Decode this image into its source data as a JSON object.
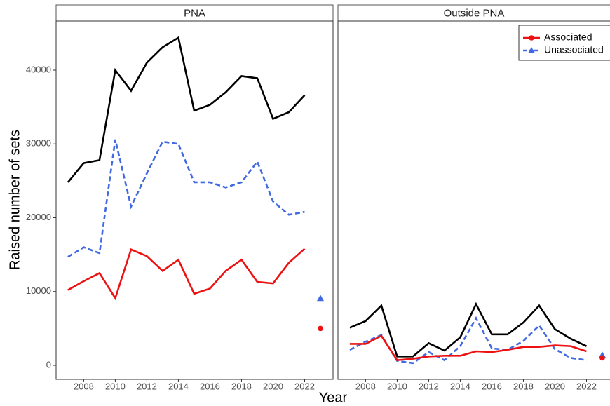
{
  "chart_data": [
    {
      "type": "line",
      "strip": "PNA",
      "xlabel": "Year",
      "ylabel": "Raised number of sets",
      "x": [
        2007,
        2008,
        2009,
        2010,
        2011,
        2012,
        2013,
        2014,
        2015,
        2016,
        2017,
        2018,
        2019,
        2020,
        2021,
        2022
      ],
      "xlim": [
        2006.25,
        2023.8
      ],
      "xticks": [
        2008,
        2010,
        2012,
        2014,
        2016,
        2018,
        2020,
        2022
      ],
      "ylim": [
        -1900,
        46650
      ],
      "yticks": [
        0,
        10000,
        20000,
        30000,
        40000
      ],
      "series": [
        {
          "color": "#000000",
          "dash": "solid",
          "values": [
            24800,
            27400,
            27800,
            40000,
            37200,
            41000,
            43100,
            44400,
            34500,
            35300,
            37000,
            39200,
            38900,
            33400,
            34300,
            36600
          ]
        },
        {
          "name": "Unassociated",
          "color": "#4169e1",
          "dash": "dashed",
          "values": [
            14700,
            16000,
            15200,
            30600,
            21500,
            26000,
            30300,
            30000,
            24800,
            24800,
            24100,
            24800,
            27600,
            22200,
            20400,
            20800
          ]
        },
        {
          "name": "Associated",
          "color": "#ee1111",
          "dash": "solid",
          "values": [
            10200,
            11400,
            12500,
            9100,
            15700,
            14800,
            12800,
            14300,
            9700,
            10400,
            12800,
            14300,
            11300,
            11100,
            13900,
            15800
          ]
        }
      ],
      "markers": [
        {
          "x": 2023,
          "y": 9100,
          "color": "#4169e1",
          "shape": "triangle"
        },
        {
          "x": 2023,
          "y": 5000,
          "color": "#ee1111",
          "shape": "circle"
        }
      ]
    },
    {
      "type": "line",
      "strip": "Outside PNA",
      "legend": "top-right",
      "x": [
        2007,
        2008,
        2009,
        2010,
        2011,
        2012,
        2013,
        2014,
        2015,
        2016,
        2017,
        2018,
        2019,
        2020,
        2021,
        2022
      ],
      "xlim": [
        2006.25,
        2023.8
      ],
      "xticks": [
        2008,
        2010,
        2012,
        2014,
        2016,
        2018,
        2020,
        2022
      ],
      "ylim": [
        -1900,
        46650
      ],
      "series": [
        {
          "color": "#000000",
          "dash": "solid",
          "values": [
            5100,
            6000,
            8100,
            1200,
            1200,
            3000,
            2000,
            3800,
            8300,
            4200,
            4200,
            5800,
            8100,
            4900,
            3600,
            2600
          ]
        },
        {
          "name": "Unassociated",
          "color": "#4169e1",
          "dash": "dashed",
          "values": [
            2100,
            3200,
            4100,
            600,
            300,
            1800,
            700,
            2600,
            6400,
            2300,
            2100,
            3300,
            5400,
            2200,
            1000,
            700
          ]
        },
        {
          "name": "Associated",
          "color": "#ee1111",
          "dash": "solid",
          "values": [
            2900,
            2900,
            4000,
            700,
            900,
            1200,
            1300,
            1300,
            1900,
            1800,
            2100,
            2500,
            2500,
            2700,
            2600,
            1900
          ]
        }
      ],
      "markers": [
        {
          "x": 2023,
          "y": 1400,
          "color": "#4169e1",
          "shape": "triangle"
        },
        {
          "x": 2023,
          "y": 1000,
          "color": "#ee1111",
          "shape": "circle"
        }
      ]
    }
  ]
}
